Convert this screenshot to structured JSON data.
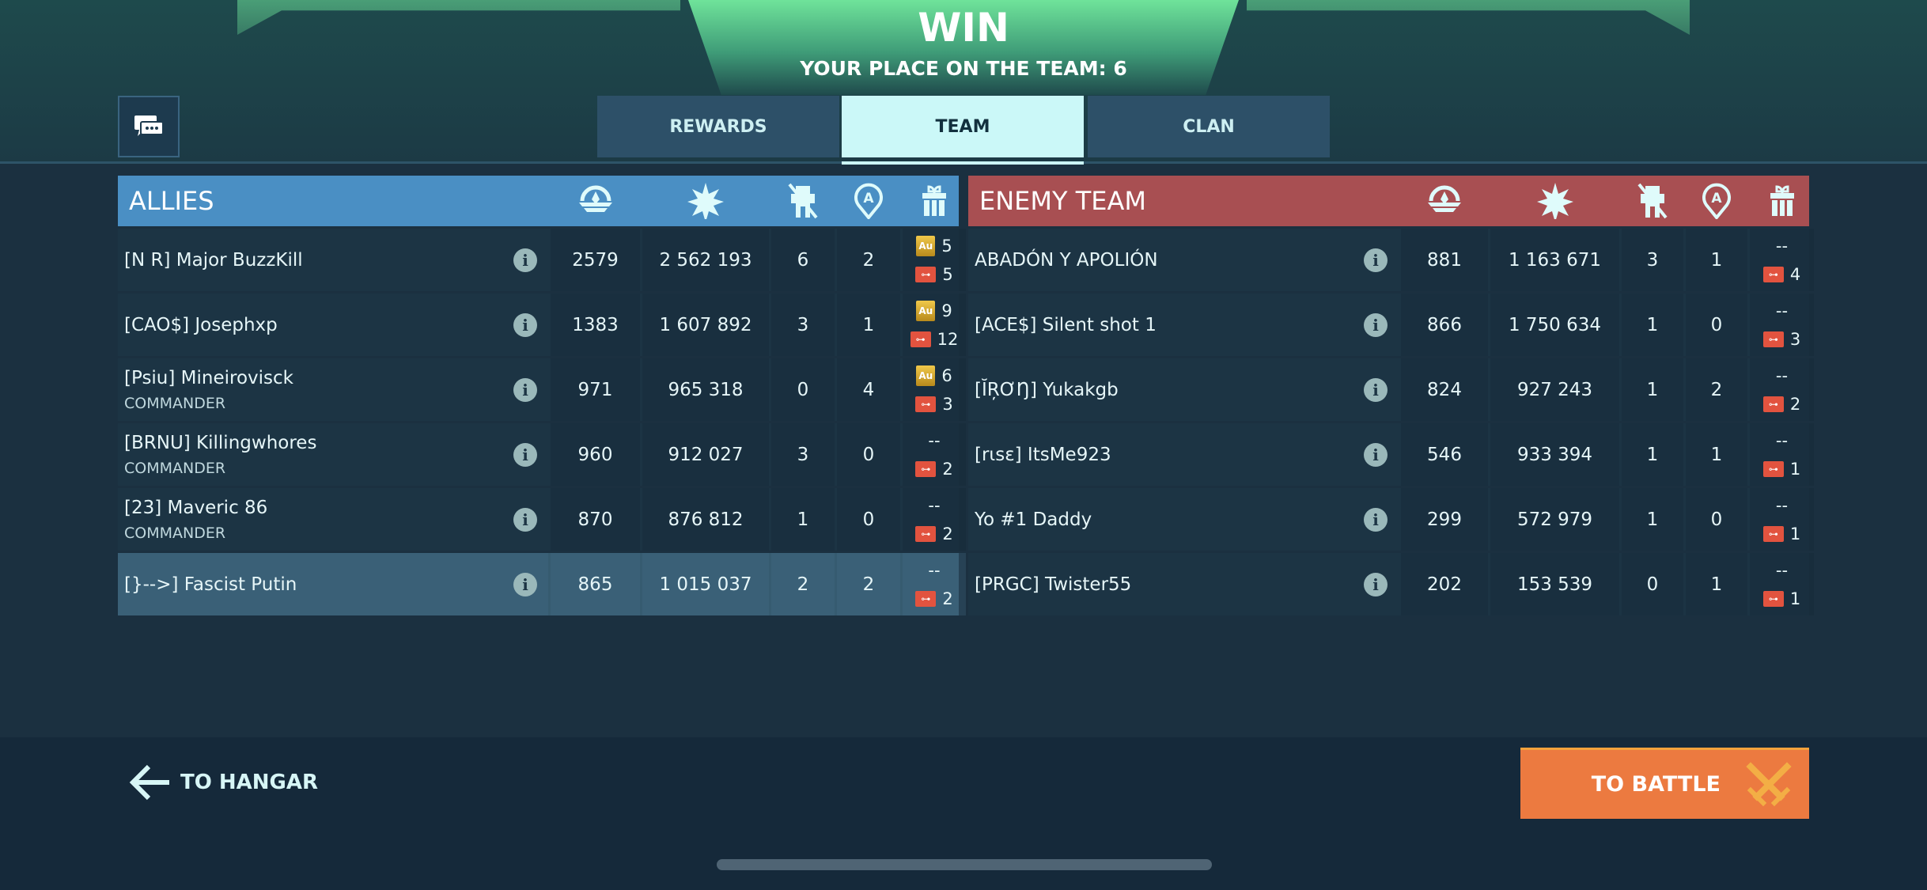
{
  "header": {
    "title": "WIN",
    "subtitle": "YOUR PLACE ON THE TEAM: 6"
  },
  "tabs": [
    {
      "label": "REWARDS",
      "active": false
    },
    {
      "label": "TEAM",
      "active": true
    },
    {
      "label": "CLAN",
      "active": false
    }
  ],
  "columns_icons": [
    "rating-icon",
    "damage-icon",
    "kills-icon",
    "capture-icon",
    "reward-icon"
  ],
  "allies": {
    "title": "ALLIES",
    "color": "#4a8fc4",
    "players": [
      {
        "name": "[N R] Major BuzzKill",
        "rank": "",
        "rating": "2579",
        "damage": "2 562 193",
        "kills": "6",
        "captures": "2",
        "gold": "5",
        "keys": "5",
        "me": false
      },
      {
        "name": "[CAO$] Josephxp",
        "rank": "",
        "rating": "1383",
        "damage": "1 607 892",
        "kills": "3",
        "captures": "1",
        "gold": "9",
        "keys": "12",
        "me": false
      },
      {
        "name": "[Psiu] Mineirovisck",
        "rank": "COMMANDER",
        "rating": "971",
        "damage": "965 318",
        "kills": "0",
        "captures": "4",
        "gold": "6",
        "keys": "3",
        "me": false
      },
      {
        "name": "[BRNU] Killingwhores",
        "rank": "COMMANDER",
        "rating": "960",
        "damage": "912 027",
        "kills": "3",
        "captures": "0",
        "gold": "--",
        "keys": "2",
        "me": false
      },
      {
        "name": "[23] Maveric 86",
        "rank": "COMMANDER",
        "rating": "870",
        "damage": "876 812",
        "kills": "1",
        "captures": "0",
        "gold": "--",
        "keys": "2",
        "me": false
      },
      {
        "name": "[}-->] Fascist Putin",
        "rank": "",
        "rating": "865",
        "damage": "1 015 037",
        "kills": "2",
        "captures": "2",
        "gold": "--",
        "keys": "2",
        "me": true
      }
    ]
  },
  "enemy": {
    "title": "ENEMY TEAM",
    "color": "#a84f52",
    "players": [
      {
        "name": "ABADÓN Y APOLIÓN",
        "rank": "",
        "rating": "881",
        "damage": "1 163 671",
        "kills": "3",
        "captures": "1",
        "gold": "--",
        "keys": "4",
        "me": false
      },
      {
        "name": "[ACE$] Silent shot 1",
        "rank": "",
        "rating": "866",
        "damage": "1 750 634",
        "kills": "1",
        "captures": "0",
        "gold": "--",
        "keys": "3",
        "me": false
      },
      {
        "name": "[ĬŖƠŊ] Yukakgb",
        "rank": "",
        "rating": "824",
        "damage": "927 243",
        "kills": "1",
        "captures": "2",
        "gold": "--",
        "keys": "2",
        "me": false
      },
      {
        "name": "[rɩsɛ] ItsMe923",
        "rank": "",
        "rating": "546",
        "damage": "933 394",
        "kills": "1",
        "captures": "1",
        "gold": "--",
        "keys": "1",
        "me": false
      },
      {
        "name": "Yo #1 Daddy",
        "rank": "",
        "rating": "299",
        "damage": "572 979",
        "kills": "1",
        "captures": "0",
        "gold": "--",
        "keys": "1",
        "me": false
      },
      {
        "name": "[PRGC] Twister55",
        "rank": "",
        "rating": "202",
        "damage": "153 539",
        "kills": "0",
        "captures": "1",
        "gold": "--",
        "keys": "1",
        "me": false
      }
    ]
  },
  "footer": {
    "hangar_label": "TO HANGAR",
    "battle_label": "TO BATTLE",
    "battle_color": "#ec7a40"
  },
  "labels": {
    "info": "i",
    "gold": "Au",
    "key": "⊶"
  }
}
